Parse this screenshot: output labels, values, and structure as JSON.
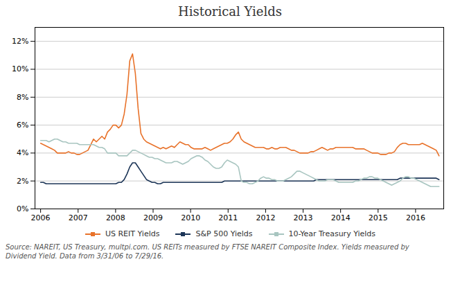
{
  "chart_data": {
    "type": "line",
    "title": "Historical Yields",
    "caption": "Source: NAREIT, US Treasury, multpi.com. US REITs measured by FTSE NAREIT Composite Index. Yields measured by\nDividend Yield. Data from 3/31/06 to 7/29/16.",
    "x": [
      2006,
      2006.0743,
      2006.1486,
      2006.2229,
      2006.2972,
      2006.3715,
      2006.4458,
      2006.5201,
      2006.5944,
      2006.6687,
      2006.743,
      2006.8173,
      2006.8916,
      2006.9659,
      2007.0402,
      2007.1145,
      2007.1888,
      2007.2631,
      2007.3374,
      2007.4117,
      2007.486,
      2007.5603,
      2007.6346,
      2007.7089,
      2007.7832,
      2007.8575,
      2007.9318,
      2008.0061,
      2008.0804,
      2008.1547,
      2008.229,
      2008.3033,
      2008.3776,
      2008.4519,
      2008.5262,
      2008.6005,
      2008.6748,
      2008.7491,
      2008.8234,
      2008.8977,
      2008.972,
      2009.0463,
      2009.1206,
      2009.1949,
      2009.2692,
      2009.3435,
      2009.4178,
      2009.4921,
      2009.5664,
      2009.6407,
      2009.715,
      2009.7893,
      2009.8636,
      2009.9379,
      2010.0122,
      2010.0865,
      2010.1608,
      2010.2351,
      2010.3094,
      2010.3837,
      2010.458,
      2010.5323,
      2010.6066,
      2010.6809,
      2010.7552,
      2010.8295,
      2010.9038,
      2010.9781,
      2011.0524,
      2011.1267,
      2011.201,
      2011.2753,
      2011.3497,
      2011.424,
      2011.4983,
      2011.5726,
      2011.6469,
      2011.7212,
      2011.7955,
      2011.8698,
      2011.9441,
      2012.0184,
      2012.0927,
      2012.167,
      2012.2413,
      2012.3156,
      2012.3899,
      2012.4642,
      2012.5385,
      2012.6128,
      2012.6871,
      2012.7614,
      2012.8357,
      2012.91,
      2012.9843,
      2013.0586,
      2013.1329,
      2013.2072,
      2013.2815,
      2013.3558,
      2013.4301,
      2013.5044,
      2013.5787,
      2013.653,
      2013.7273,
      2013.8016,
      2013.8759,
      2013.9502,
      2014.0245,
      2014.0988,
      2014.1731,
      2014.2474,
      2014.3217,
      2014.396,
      2014.4703,
      2014.5446,
      2014.6189,
      2014.6932,
      2014.7675,
      2014.8418,
      2014.9161,
      2014.9904,
      2015.0647,
      2015.139,
      2015.2133,
      2015.2876,
      2015.3619,
      2015.4362,
      2015.5105,
      2015.5848,
      2015.6591,
      2015.7334,
      2015.8077,
      2015.882,
      2015.9563,
      2016.0306,
      2016.1049,
      2016.1792,
      2016.2535,
      2016.3278,
      2016.4021,
      2016.4764,
      2016.5507,
      2016.625
    ],
    "series": [
      {
        "name": "US REIT Yields",
        "color": "#E8722A",
        "values": [
          0.047,
          0.046,
          0.045,
          0.044,
          0.043,
          0.042,
          0.04,
          0.04,
          0.04,
          0.04,
          0.041,
          0.04,
          0.04,
          0.039,
          0.039,
          0.04,
          0.041,
          0.042,
          0.046,
          0.05,
          0.048,
          0.05,
          0.052,
          0.05,
          0.055,
          0.057,
          0.06,
          0.06,
          0.058,
          0.06,
          0.068,
          0.082,
          0.106,
          0.111,
          0.097,
          0.072,
          0.054,
          0.05,
          0.048,
          0.047,
          0.046,
          0.045,
          0.044,
          0.043,
          0.044,
          0.043,
          0.044,
          0.045,
          0.044,
          0.046,
          0.048,
          0.047,
          0.046,
          0.046,
          0.044,
          0.043,
          0.043,
          0.043,
          0.043,
          0.044,
          0.043,
          0.042,
          0.043,
          0.044,
          0.045,
          0.046,
          0.047,
          0.047,
          0.048,
          0.05,
          0.053,
          0.055,
          0.05,
          0.048,
          0.047,
          0.046,
          0.045,
          0.044,
          0.044,
          0.044,
          0.044,
          0.043,
          0.043,
          0.044,
          0.043,
          0.043,
          0.044,
          0.044,
          0.044,
          0.043,
          0.042,
          0.042,
          0.041,
          0.04,
          0.04,
          0.04,
          0.04,
          0.041,
          0.041,
          0.042,
          0.043,
          0.044,
          0.043,
          0.042,
          0.043,
          0.043,
          0.044,
          0.044,
          0.044,
          0.044,
          0.044,
          0.044,
          0.044,
          0.043,
          0.043,
          0.043,
          0.043,
          0.042,
          0.041,
          0.04,
          0.04,
          0.04,
          0.039,
          0.039,
          0.039,
          0.04,
          0.04,
          0.041,
          0.044,
          0.046,
          0.047,
          0.047,
          0.046,
          0.046,
          0.046,
          0.046,
          0.046,
          0.047,
          0.046,
          0.045,
          0.044,
          0.043,
          0.042,
          0.038
        ]
      },
      {
        "name": "S&P 500 Yields",
        "color": "#1C3557",
        "values": [
          0.019,
          0.019,
          0.018,
          0.018,
          0.018,
          0.018,
          0.018,
          0.018,
          0.018,
          0.018,
          0.018,
          0.018,
          0.018,
          0.018,
          0.018,
          0.018,
          0.018,
          0.018,
          0.018,
          0.018,
          0.018,
          0.018,
          0.018,
          0.018,
          0.018,
          0.018,
          0.018,
          0.018,
          0.019,
          0.019,
          0.021,
          0.025,
          0.03,
          0.033,
          0.033,
          0.03,
          0.027,
          0.024,
          0.021,
          0.02,
          0.019,
          0.019,
          0.018,
          0.018,
          0.019,
          0.019,
          0.019,
          0.019,
          0.019,
          0.019,
          0.019,
          0.019,
          0.019,
          0.019,
          0.019,
          0.019,
          0.019,
          0.019,
          0.019,
          0.019,
          0.019,
          0.019,
          0.019,
          0.019,
          0.019,
          0.019,
          0.02,
          0.02,
          0.02,
          0.02,
          0.02,
          0.02,
          0.02,
          0.02,
          0.02,
          0.02,
          0.02,
          0.02,
          0.02,
          0.02,
          0.02,
          0.02,
          0.02,
          0.02,
          0.02,
          0.02,
          0.02,
          0.02,
          0.02,
          0.02,
          0.02,
          0.02,
          0.02,
          0.02,
          0.02,
          0.02,
          0.02,
          0.02,
          0.02,
          0.021,
          0.021,
          0.021,
          0.021,
          0.021,
          0.021,
          0.021,
          0.021,
          0.021,
          0.021,
          0.021,
          0.021,
          0.021,
          0.021,
          0.021,
          0.021,
          0.021,
          0.021,
          0.021,
          0.021,
          0.021,
          0.021,
          0.021,
          0.021,
          0.021,
          0.021,
          0.021,
          0.021,
          0.021,
          0.021,
          0.022,
          0.022,
          0.022,
          0.022,
          0.022,
          0.022,
          0.022,
          0.022,
          0.022,
          0.022,
          0.022,
          0.022,
          0.022,
          0.022,
          0.021
        ]
      },
      {
        "name": "10-Year Treasury Yields",
        "color": "#A8C5C0",
        "values": [
          0.049,
          0.049,
          0.049,
          0.048,
          0.049,
          0.05,
          0.05,
          0.049,
          0.048,
          0.048,
          0.047,
          0.047,
          0.047,
          0.047,
          0.046,
          0.046,
          0.046,
          0.046,
          0.046,
          0.046,
          0.045,
          0.044,
          0.044,
          0.043,
          0.04,
          0.04,
          0.04,
          0.04,
          0.038,
          0.038,
          0.038,
          0.038,
          0.04,
          0.042,
          0.042,
          0.041,
          0.04,
          0.039,
          0.038,
          0.037,
          0.037,
          0.036,
          0.036,
          0.035,
          0.034,
          0.033,
          0.033,
          0.033,
          0.034,
          0.034,
          0.033,
          0.032,
          0.033,
          0.034,
          0.036,
          0.037,
          0.038,
          0.038,
          0.037,
          0.035,
          0.034,
          0.032,
          0.03,
          0.029,
          0.029,
          0.03,
          0.033,
          0.035,
          0.034,
          0.033,
          0.032,
          0.03,
          0.02,
          0.019,
          0.019,
          0.018,
          0.018,
          0.019,
          0.02,
          0.022,
          0.023,
          0.022,
          0.022,
          0.021,
          0.021,
          0.02,
          0.02,
          0.02,
          0.021,
          0.022,
          0.023,
          0.025,
          0.027,
          0.027,
          0.026,
          0.025,
          0.024,
          0.023,
          0.022,
          0.021,
          0.02,
          0.02,
          0.02,
          0.021,
          0.021,
          0.021,
          0.02,
          0.019,
          0.019,
          0.019,
          0.019,
          0.019,
          0.019,
          0.02,
          0.02,
          0.021,
          0.022,
          0.022,
          0.023,
          0.023,
          0.022,
          0.022,
          0.021,
          0.02,
          0.019,
          0.018,
          0.017,
          0.018,
          0.019,
          0.02,
          0.022,
          0.023,
          0.023,
          0.022,
          0.022,
          0.021,
          0.02,
          0.019,
          0.018,
          0.017,
          0.016,
          0.016,
          0.016,
          0.016
        ]
      }
    ],
    "xlim": [
      2005.85,
      2016.75
    ],
    "xticks": [
      2006,
      2007,
      2008,
      2009,
      2010,
      2011,
      2012,
      2013,
      2014,
      2015,
      2016
    ],
    "ylim": [
      0,
      0.13
    ],
    "yticks": [
      {
        "value": 0,
        "label": "0%"
      },
      {
        "value": 0.02,
        "label": "2%"
      },
      {
        "value": 0.04,
        "label": "4%"
      },
      {
        "value": 0.06,
        "label": "6%"
      },
      {
        "value": 0.08,
        "label": "8%"
      },
      {
        "value": 0.1,
        "label": "10%"
      },
      {
        "value": 0.12,
        "label": "12%"
      }
    ],
    "grid": "y",
    "legend": "bottom"
  }
}
